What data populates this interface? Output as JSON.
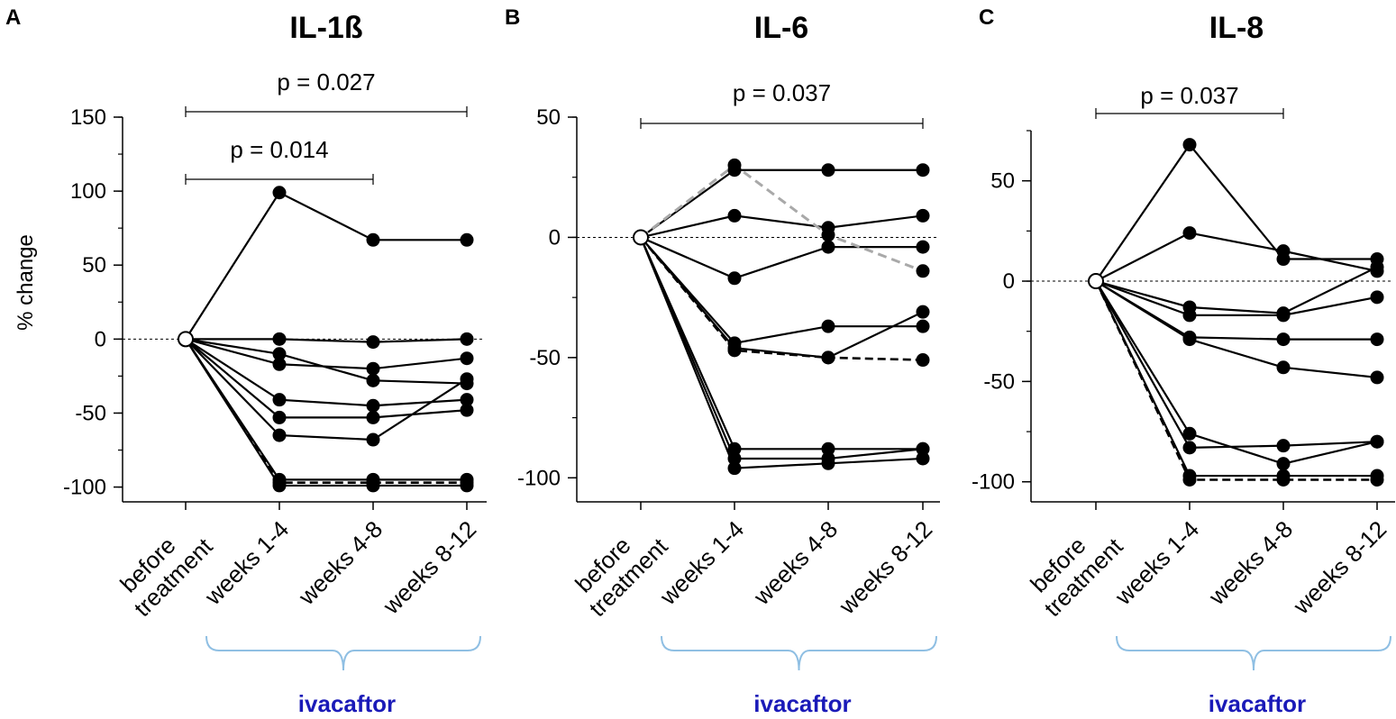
{
  "chart_data": [
    {
      "type": "line",
      "panel_letter": "A",
      "title": "IL-1ß",
      "ylabel": "% change",
      "ylim": [
        -110,
        150
      ],
      "yticks": [
        150,
        100,
        50,
        0,
        -50,
        -100
      ],
      "categories": [
        "before treatment",
        "weeks 1-4",
        "weeks 4-8",
        "weeks 8-12"
      ],
      "baseline": 0,
      "brackets": [
        {
          "from": 0,
          "to": 3,
          "label": "p = 0.027"
        },
        {
          "from": 0,
          "to": 2,
          "label": "p = 0.014"
        }
      ],
      "bracket_group_label": "ivacaftor",
      "series": [
        {
          "values": [
            0,
            99,
            67,
            67
          ],
          "style": "solid"
        },
        {
          "values": [
            0,
            0,
            -2,
            0
          ],
          "style": "solid"
        },
        {
          "values": [
            0,
            -10,
            -28,
            -30
          ],
          "style": "solid"
        },
        {
          "values": [
            0,
            -17,
            -20,
            -13
          ],
          "style": "solid"
        },
        {
          "values": [
            0,
            -41,
            -45,
            -41
          ],
          "style": "solid"
        },
        {
          "values": [
            0,
            -53,
            -53,
            -48
          ],
          "style": "solid"
        },
        {
          "values": [
            0,
            -65,
            -68,
            -27
          ],
          "style": "solid"
        },
        {
          "values": [
            0,
            -95,
            -95,
            -95
          ],
          "style": "solid"
        },
        {
          "values": [
            0,
            -97,
            -97,
            -97
          ],
          "style": "dashed-black"
        },
        {
          "values": [
            0,
            -99,
            -99,
            -99
          ],
          "style": "solid"
        }
      ]
    },
    {
      "type": "line",
      "panel_letter": "B",
      "title": "IL-6",
      "ylabel": "",
      "ylim": [
        -110,
        50
      ],
      "yticks": [
        50,
        0,
        -50,
        -100
      ],
      "categories": [
        "before treatment",
        "weeks 1-4",
        "weeks 4-8",
        "weeks 8-12"
      ],
      "baseline": 0,
      "brackets": [
        {
          "from": 0,
          "to": 3,
          "label": "p = 0.037"
        }
      ],
      "bracket_group_label": "ivacaftor",
      "series": [
        {
          "values": [
            0,
            30,
            1,
            -14
          ],
          "style": "dashed-gray"
        },
        {
          "values": [
            0,
            28,
            28,
            28
          ],
          "style": "solid"
        },
        {
          "values": [
            0,
            9,
            4,
            9
          ],
          "style": "solid"
        },
        {
          "values": [
            0,
            -17,
            -4,
            -4
          ],
          "style": "solid"
        },
        {
          "values": [
            0,
            -44,
            -37,
            -37
          ],
          "style": "solid"
        },
        {
          "values": [
            0,
            -46,
            -50,
            -31
          ],
          "style": "solid"
        },
        {
          "values": [
            0,
            -47,
            -50,
            -51
          ],
          "style": "dashed-black"
        },
        {
          "values": [
            0,
            -88,
            -88,
            -88
          ],
          "style": "solid"
        },
        {
          "values": [
            0,
            -92,
            -92,
            -88
          ],
          "style": "solid"
        },
        {
          "values": [
            0,
            -96,
            -94,
            -92
          ],
          "style": "solid"
        }
      ]
    },
    {
      "type": "line",
      "panel_letter": "C",
      "title": "IL-8",
      "ylabel": "",
      "ylim": [
        -110,
        75
      ],
      "yticks": [
        50,
        0,
        -50,
        -100
      ],
      "categories": [
        "before treatment",
        "weeks 1-4",
        "weeks 4-8",
        "weeks 8-12"
      ],
      "baseline": 0,
      "brackets": [
        {
          "from": 0,
          "to": 2,
          "label": "p = 0.037"
        }
      ],
      "bracket_group_label": "ivacaftor",
      "series": [
        {
          "values": [
            0,
            68,
            11,
            11
          ],
          "style": "solid"
        },
        {
          "values": [
            0,
            24,
            15,
            5
          ],
          "style": "solid"
        },
        {
          "values": [
            0,
            -13,
            -16,
            7
          ],
          "style": "solid"
        },
        {
          "values": [
            0,
            -17,
            -17,
            -8
          ],
          "style": "solid"
        },
        {
          "values": [
            0,
            -28,
            -29,
            -29
          ],
          "style": "solid"
        },
        {
          "values": [
            0,
            -29,
            -43,
            -48
          ],
          "style": "solid"
        },
        {
          "values": [
            0,
            -76,
            -91,
            -80
          ],
          "style": "solid"
        },
        {
          "values": [
            0,
            -83,
            -82,
            -80
          ],
          "style": "solid"
        },
        {
          "values": [
            0,
            -97,
            -97,
            -97
          ],
          "style": "solid"
        },
        {
          "values": [
            0,
            -99,
            -99,
            -99
          ],
          "style": "dashed-black"
        }
      ]
    }
  ],
  "colors": {
    "series_black": "#000000",
    "series_gray_dashed": "#a9a9a9",
    "brace": "#8fbfe3",
    "drug_label": "#1a1ab8",
    "baseline_marker_fill": "#ffffff"
  }
}
